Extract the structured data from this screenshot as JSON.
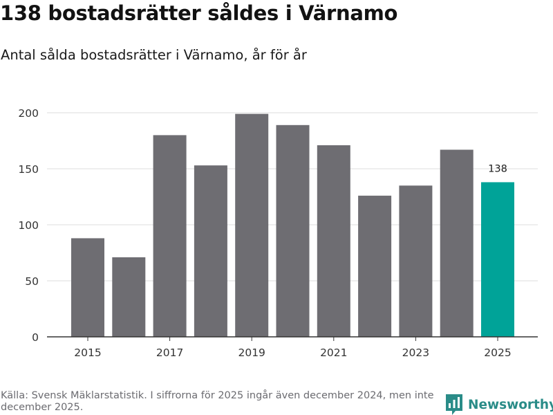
{
  "header": {
    "title": "138 bostadsrätter såldes i Värnamo",
    "subtitle": "Antal sålda bostadsrätter i Värnamo, år för år"
  },
  "chart_data": {
    "type": "bar",
    "title": "138 bostadsrätter såldes i Värnamo",
    "subtitle": "Antal sålda bostadsrätter i Värnamo, år för år",
    "xlabel": "",
    "ylabel": "",
    "categories": [
      "2015",
      "2016",
      "2017",
      "2018",
      "2019",
      "2020",
      "2021",
      "2022",
      "2023",
      "2024",
      "2025"
    ],
    "x_tick_labels": [
      "2015",
      "2017",
      "2019",
      "2021",
      "2023",
      "2025"
    ],
    "values": [
      88,
      71,
      180,
      153,
      199,
      189,
      171,
      126,
      135,
      167,
      138
    ],
    "ylim": [
      0,
      200
    ],
    "y_ticks": [
      0,
      50,
      100,
      150,
      200
    ],
    "grid": "horizontal",
    "legend": "none",
    "highlight": {
      "category": "2025",
      "label": "138"
    },
    "colors": {
      "bar": "#6e6d72",
      "highlight": "#00a398",
      "grid": "#dcdcdc",
      "axis": "#333333"
    }
  },
  "footer": {
    "source": "Källa: Svensk Mäklarstatistik. I siffrorna för 2025 ingår även december 2024, men inte december 2025.",
    "brand": "Newsworthy",
    "brand_icon": "bar-chart-speech-bubble-icon",
    "brand_color": "#2a8c88"
  }
}
